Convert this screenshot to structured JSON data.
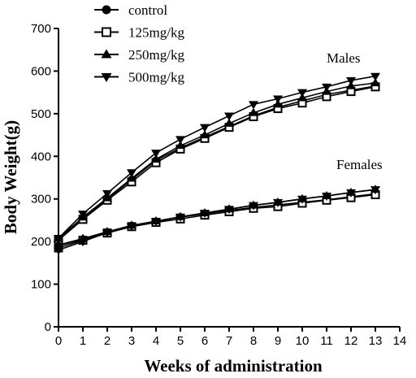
{
  "chart_data": {
    "type": "line",
    "xlabel": "Weeks of administration",
    "ylabel": "Body Weight(g)",
    "xlim": [
      0,
      14
    ],
    "ylim": [
      0,
      700
    ],
    "xticks": [
      0,
      1,
      2,
      3,
      4,
      5,
      6,
      7,
      8,
      9,
      10,
      11,
      12,
      13,
      14
    ],
    "yticks": [
      0,
      100,
      200,
      300,
      400,
      500,
      600,
      700
    ],
    "grid": false,
    "legend_position": "top-left",
    "legend": [
      {
        "label": "control",
        "marker": "circle"
      },
      {
        "label": "125mg/kg",
        "marker": "square-open"
      },
      {
        "label": "250mg/kg",
        "marker": "triangle-up"
      },
      {
        "label": "500mg/kg",
        "marker": "triangle-down"
      }
    ],
    "annotations": [
      {
        "text": "Males",
        "x": 11,
        "y": 620
      },
      {
        "text": "Females",
        "x": 11.4,
        "y": 370
      }
    ],
    "x": [
      0,
      1,
      2,
      3,
      4,
      5,
      6,
      7,
      8,
      9,
      10,
      11,
      12,
      13
    ],
    "series": [
      {
        "group": "Males",
        "marker": "circle",
        "values": [
          205,
          255,
          300,
          345,
          390,
          420,
          445,
          470,
          495,
          515,
          530,
          545,
          555,
          565
        ]
      },
      {
        "group": "Males",
        "marker": "square-open",
        "values": [
          203,
          252,
          297,
          340,
          385,
          417,
          442,
          468,
          493,
          512,
          525,
          540,
          552,
          563
        ]
      },
      {
        "group": "Males",
        "marker": "triangle-up",
        "values": [
          207,
          257,
          302,
          348,
          393,
          425,
          450,
          477,
          502,
          522,
          537,
          552,
          565,
          572
        ]
      },
      {
        "group": "Males",
        "marker": "triangle-down",
        "values": [
          208,
          265,
          313,
          362,
          408,
          440,
          468,
          495,
          522,
          535,
          550,
          563,
          578,
          588
        ]
      },
      {
        "group": "Females",
        "marker": "circle",
        "values": [
          190,
          205,
          222,
          237,
          247,
          257,
          265,
          273,
          280,
          286,
          292,
          298,
          305,
          312
        ]
      },
      {
        "group": "Females",
        "marker": "square-open",
        "values": [
          185,
          203,
          220,
          235,
          245,
          253,
          262,
          270,
          278,
          282,
          290,
          297,
          303,
          310
        ]
      },
      {
        "group": "Females",
        "marker": "triangle-up",
        "values": [
          192,
          207,
          223,
          238,
          248,
          258,
          267,
          276,
          285,
          292,
          300,
          307,
          315,
          322
        ]
      },
      {
        "group": "Females",
        "marker": "triangle-down",
        "values": [
          180,
          200,
          221,
          236,
          248,
          258,
          267,
          276,
          285,
          292,
          300,
          307,
          315,
          322
        ]
      }
    ]
  }
}
